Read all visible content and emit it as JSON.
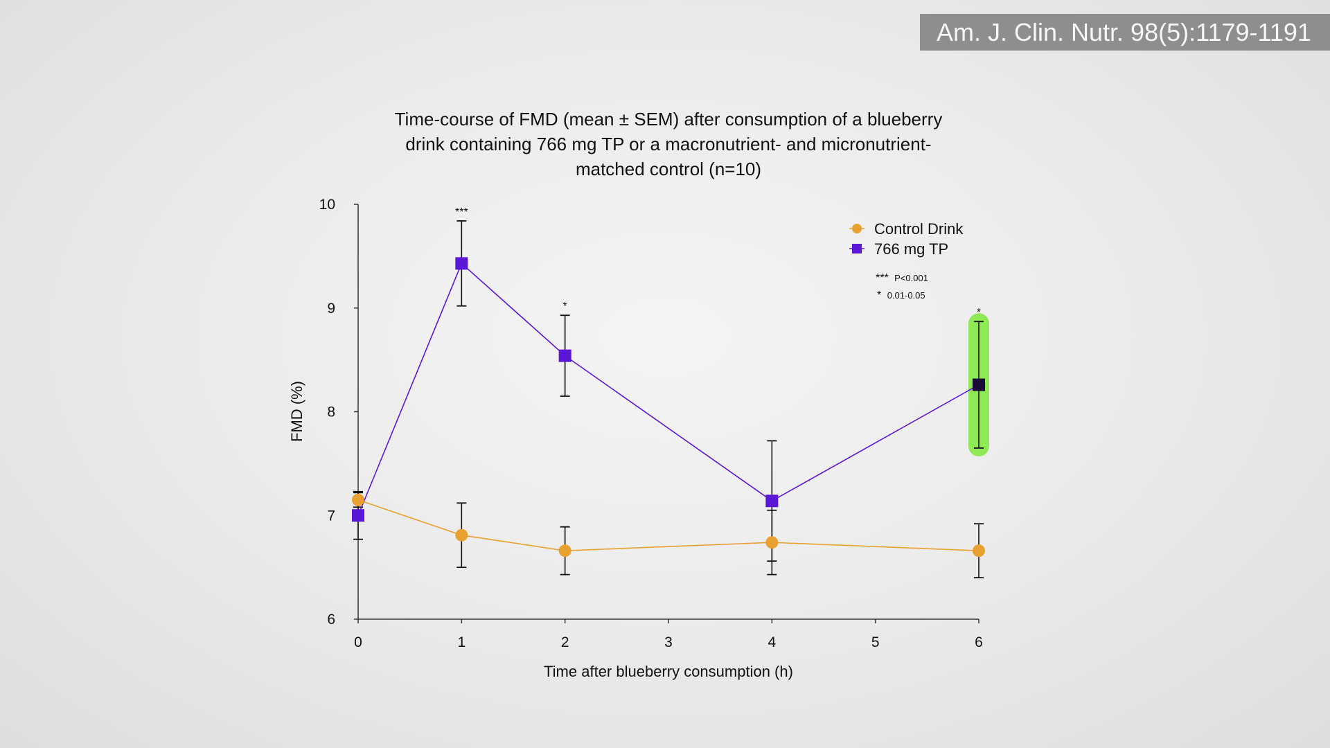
{
  "citation": "Am. J. Clin. Nutr. 98(5):1179-1191",
  "chart_data": {
    "type": "line",
    "title_lines": [
      "Time-course of FMD (mean ± SEM) after consumption of a blueberry",
      "drink containing 766 mg TP or a macronutrient- and micronutrient-",
      "matched control (n=10)"
    ],
    "xlabel": "Time after blueberry consumption (h)",
    "ylabel": "FMD (%)",
    "xlim": [
      0,
      6
    ],
    "ylim": [
      6,
      10
    ],
    "x_ticks": [
      0,
      1,
      2,
      3,
      4,
      5,
      6
    ],
    "y_ticks": [
      6,
      7,
      8,
      9,
      10
    ],
    "grid": false,
    "legend_position": "top-right",
    "series": [
      {
        "name": "Control Drink",
        "marker": "circle",
        "color": "#e8a030",
        "x": [
          0,
          1,
          2,
          4,
          6
        ],
        "y": [
          7.15,
          6.81,
          6.66,
          6.74,
          6.66
        ],
        "err": [
          0.07,
          0.31,
          0.23,
          0.31,
          0.26
        ]
      },
      {
        "name": "766 mg TP",
        "marker": "square",
        "color": "#5b17d6",
        "x": [
          0,
          1,
          2,
          4,
          6
        ],
        "y": [
          7.0,
          9.43,
          8.54,
          7.14,
          8.26
        ],
        "err": [
          0.23,
          0.41,
          0.39,
          0.58,
          0.61
        ]
      }
    ],
    "significance": [
      {
        "x": 1,
        "label": "***"
      },
      {
        "x": 2,
        "label": "*"
      },
      {
        "x": 6,
        "label": "*"
      }
    ],
    "significance_key": [
      {
        "stars": "***",
        "text": "P<0.001"
      },
      {
        "stars": "*",
        "text": "0.01-0.05"
      }
    ],
    "highlight": {
      "x": 6,
      "series": "766 mg TP",
      "color": "#7ee83a"
    }
  }
}
